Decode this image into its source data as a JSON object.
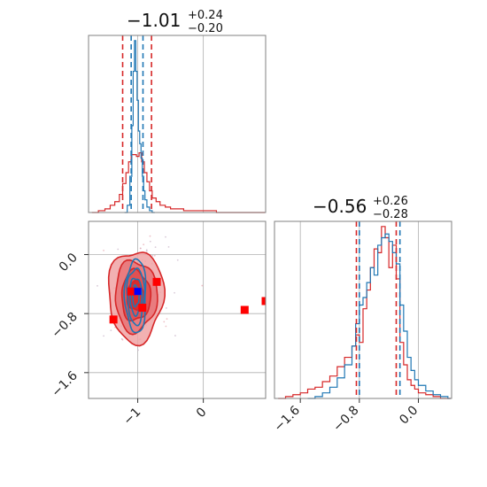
{
  "colors": {
    "red": "#d62728",
    "blue": "#1f77b4",
    "marker_red": "#ff0000",
    "marker_blue": "#0000ff",
    "grid": "#b0b0b0",
    "frame": "#808080"
  },
  "chart_data": [
    {
      "type": "histogram",
      "panel": "top-left",
      "title": {
        "median": "−1.01",
        "plus": "+0.24",
        "minus": "−0.20"
      },
      "xlim": [
        -1.75,
        0.95
      ],
      "grid": true,
      "quantile_lines": {
        "red": [
          -1.23,
          -0.79
        ],
        "blue": [
          -1.1,
          -0.92
        ]
      },
      "series": [
        {
          "name": "",
          "color": "red",
          "x": [
            -1.7,
            -1.6,
            -1.5,
            -1.42,
            -1.35,
            -1.28,
            -1.23,
            -1.18,
            -1.14,
            -1.1,
            -1.06,
            -1.02,
            -0.98,
            -0.94,
            -0.9,
            -0.86,
            -0.82,
            -0.78,
            -0.72,
            -0.66,
            -0.58,
            -0.5,
            -0.4,
            -0.3,
            -0.15,
            0.0,
            0.2,
            0.45,
            0.7,
            0.9
          ],
          "values": [
            0.0,
            0.01,
            0.02,
            0.04,
            0.06,
            0.1,
            0.16,
            0.22,
            0.28,
            0.32,
            0.32,
            0.31,
            0.33,
            0.28,
            0.22,
            0.17,
            0.12,
            0.08,
            0.06,
            0.04,
            0.03,
            0.02,
            0.02,
            0.01,
            0.01,
            0.01,
            0.0,
            0.0,
            0.0,
            0.0
          ]
        },
        {
          "name": "",
          "color": "blue",
          "x": [
            -1.2,
            -1.16,
            -1.12,
            -1.09,
            -1.07,
            -1.05,
            -1.03,
            -1.01,
            -0.99,
            -0.97,
            -0.95,
            -0.93,
            -0.91,
            -0.89,
            -0.86,
            -0.82,
            -0.78
          ],
          "values": [
            0.0,
            0.04,
            0.2,
            0.48,
            0.78,
            0.95,
            0.78,
            0.62,
            0.45,
            0.38,
            0.3,
            0.2,
            0.12,
            0.07,
            0.03,
            0.01,
            0.0
          ]
        }
      ]
    },
    {
      "type": "histogram",
      "panel": "bottom-right",
      "title": {
        "median": "−0.56",
        "plus": "+0.26",
        "minus": "−0.28"
      },
      "xlim": [
        -1.95,
        0.45
      ],
      "xticks": [
        {
          "value": -1.6,
          "label": "−1.6"
        },
        {
          "value": -0.8,
          "label": "−0.8"
        },
        {
          "value": 0.0,
          "label": "0.0"
        }
      ],
      "grid": true,
      "quantile_lines": {
        "red": [
          -0.84,
          -0.3
        ],
        "blue": [
          -0.8,
          -0.25
        ]
      },
      "series": [
        {
          "name": "",
          "color": "red",
          "x": [
            -1.9,
            -1.8,
            -1.7,
            -1.6,
            -1.5,
            -1.4,
            -1.3,
            -1.2,
            -1.1,
            -1.0,
            -0.9,
            -0.85,
            -0.8,
            -0.75,
            -0.7,
            -0.65,
            -0.6,
            -0.55,
            -0.5,
            -0.45,
            -0.4,
            -0.35,
            -0.3,
            -0.25,
            -0.2,
            -0.15,
            -0.1,
            -0.05,
            0.0,
            0.1,
            0.2,
            0.3,
            0.4
          ],
          "values": [
            0.0,
            0.01,
            0.02,
            0.03,
            0.05,
            0.06,
            0.09,
            0.12,
            0.17,
            0.22,
            0.28,
            0.34,
            0.3,
            0.48,
            0.58,
            0.7,
            0.8,
            0.78,
            0.92,
            0.86,
            0.7,
            0.82,
            0.64,
            0.3,
            0.18,
            0.1,
            0.07,
            0.05,
            0.03,
            0.02,
            0.01,
            0.0,
            0.0
          ]
        },
        {
          "name": "",
          "color": "blue",
          "x": [
            -1.5,
            -1.4,
            -1.3,
            -1.2,
            -1.1,
            -1.0,
            -0.9,
            -0.85,
            -0.8,
            -0.75,
            -0.7,
            -0.65,
            -0.6,
            -0.55,
            -0.5,
            -0.45,
            -0.4,
            -0.35,
            -0.3,
            -0.25,
            -0.2,
            -0.15,
            -0.1,
            -0.05,
            0.0,
            0.1,
            0.2,
            0.3,
            0.4
          ],
          "values": [
            0.0,
            0.01,
            0.03,
            0.06,
            0.11,
            0.18,
            0.28,
            0.4,
            0.5,
            0.54,
            0.62,
            0.7,
            0.66,
            0.82,
            0.86,
            0.88,
            0.84,
            0.78,
            0.72,
            0.5,
            0.36,
            0.22,
            0.15,
            0.1,
            0.07,
            0.04,
            0.02,
            0.01,
            0.0
          ]
        }
      ]
    },
    {
      "type": "scatter",
      "panel": "bottom-left",
      "xlim": [
        -1.75,
        0.95
      ],
      "ylim": [
        -1.95,
        0.45
      ],
      "xticks": [
        {
          "value": -1.0,
          "label": "−1"
        },
        {
          "value": 0.0,
          "label": "0"
        }
      ],
      "yticks": [
        {
          "value": 0.0,
          "label": "0.0"
        },
        {
          "value": -0.8,
          "label": "−0.8"
        },
        {
          "value": -1.6,
          "label": "−1.6"
        }
      ],
      "grid": true,
      "contours": {
        "center": [
          -1.03,
          -0.56
        ],
        "red_radii": [
          [
            0.13,
            0.2
          ],
          [
            0.22,
            0.34
          ],
          [
            0.32,
            0.48
          ],
          [
            0.42,
            0.62
          ]
        ],
        "blue_radii": [
          [
            0.05,
            0.14
          ],
          [
            0.09,
            0.25
          ],
          [
            0.13,
            0.38
          ],
          [
            0.16,
            0.5
          ]
        ]
      },
      "points": {
        "red_squares": [
          {
            "x": -1.37,
            "y": -0.88
          },
          {
            "x": -1.1,
            "y": -0.5
          },
          {
            "x": -0.93,
            "y": -0.72
          },
          {
            "x": -0.71,
            "y": -0.37
          },
          {
            "x": 0.63,
            "y": -0.75
          },
          {
            "x": 0.95,
            "y": -0.63
          }
        ],
        "blue_squares": [
          {
            "x": -1.0,
            "y": -0.5
          }
        ]
      }
    }
  ]
}
